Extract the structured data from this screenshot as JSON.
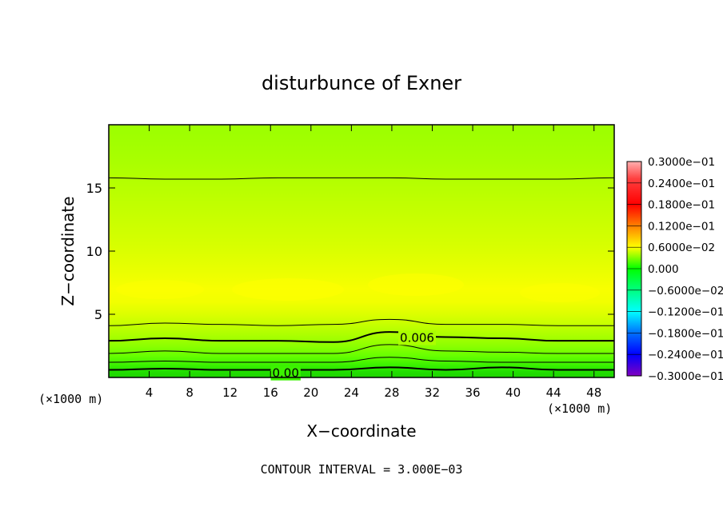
{
  "chart_data": {
    "type": "heatmap",
    "title": "disturbunce of Exner",
    "xlabel": "X−coordinate",
    "ylabel": "Z−coordinate",
    "x_unit_left": "(×1000 m)",
    "x_unit_right": "(×1000 m)",
    "footer": "CONTOUR INTERVAL = 3.000E−03",
    "xlim": [
      0,
      50
    ],
    "ylim": [
      0,
      20
    ],
    "x_ticks": [
      4,
      8,
      12,
      16,
      20,
      24,
      28,
      32,
      36,
      40,
      44,
      48
    ],
    "x_tick_labels": [
      "4",
      "8",
      "12",
      "16",
      "20",
      "24",
      "28",
      "32",
      "36",
      "40",
      "44",
      "48"
    ],
    "y_ticks": [
      5,
      10,
      15
    ],
    "y_tick_labels": [
      "5",
      "10",
      "15"
    ],
    "colorbar": {
      "range": [
        -0.03,
        0.03
      ],
      "labels": [
        "0.3000e−01",
        "0.2400e−01",
        "0.1800e−01",
        "0.1200e−01",
        "0.6000e−02",
        "0.000",
        "−0.6000e−02",
        "−0.1200e−01",
        "−0.1800e−01",
        "−0.2400e−01",
        "−0.3000e−01"
      ]
    },
    "contour_labels": [
      {
        "text": "0.006",
        "x": 30.5,
        "z": 3.2
      },
      {
        "text": "0.00",
        "x": 17.5,
        "z": 0.4
      }
    ],
    "contours": [
      {
        "level": 0.003,
        "bold": false,
        "z": [
          15.8,
          15.7,
          15.7,
          15.8,
          15.8,
          15.8,
          15.7,
          15.7,
          15.7,
          15.8
        ]
      },
      {
        "level": 0.009,
        "bold": false,
        "z": [
          4.1,
          4.3,
          4.2,
          4.1,
          4.2,
          4.6,
          4.2,
          4.2,
          4.1,
          4.1
        ]
      },
      {
        "level": 0.006,
        "bold": true,
        "z": [
          2.9,
          3.1,
          2.9,
          2.9,
          2.8,
          3.6,
          3.2,
          3.1,
          2.9,
          2.9
        ]
      },
      {
        "level": 0.003,
        "bold": false,
        "z": [
          1.9,
          2.1,
          1.9,
          1.9,
          1.9,
          2.6,
          2.1,
          2.0,
          1.9,
          1.9
        ]
      },
      {
        "level": 0.0,
        "bold": false,
        "z": [
          1.2,
          1.3,
          1.2,
          1.2,
          1.2,
          1.6,
          1.3,
          1.2,
          1.2,
          1.2
        ]
      },
      {
        "level": 0.0,
        "bold": true,
        "z": [
          0.6,
          0.7,
          0.6,
          0.6,
          0.6,
          0.8,
          0.6,
          0.8,
          0.6,
          0.6
        ]
      }
    ],
    "bands": [
      {
        "z": 19.9,
        "color": "#9cff00"
      },
      {
        "z": 18.5,
        "color": "#a2ff00"
      },
      {
        "z": 17.0,
        "color": "#aaff00"
      },
      {
        "z": 15.5,
        "color": "#b4ff00"
      },
      {
        "z": 13.8,
        "color": "#c0ff00"
      },
      {
        "z": 12.0,
        "color": "#ccff00"
      },
      {
        "z": 10.3,
        "color": "#d8ff00"
      },
      {
        "z": 9.0,
        "color": "#e4ff00"
      },
      {
        "z": 8.0,
        "color": "#eeff00"
      },
      {
        "z": 7.0,
        "color": "#f8ff00"
      },
      {
        "z": 6.0,
        "color": "#f2ff00"
      },
      {
        "z": 5.0,
        "color": "#dcff00"
      },
      {
        "z": 4.2,
        "color": "#c6ff00"
      },
      {
        "z": 3.3,
        "color": "#aaff00"
      },
      {
        "z": 2.5,
        "color": "#8cff00"
      },
      {
        "z": 1.7,
        "color": "#66ff00"
      },
      {
        "z": 1.0,
        "color": "#3cf200"
      },
      {
        "z": 0.5,
        "color": "#22e000"
      },
      {
        "z": 0.0,
        "color": "#1ed400"
      }
    ]
  }
}
